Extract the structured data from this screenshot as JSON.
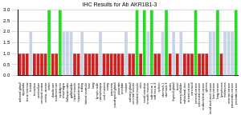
{
  "chart_data": {
    "type": "bar",
    "title": "IHC Results for Ab AKR1B1-3",
    "categories": [
      "adrenal gland",
      "appendix",
      "bone marrow",
      "breast",
      "bronchus",
      "cerebellum",
      "cerebral cortex",
      "cervix, uterine",
      "colon",
      "duodenum",
      "endometrium",
      "epididymis",
      "esophagus",
      "fallopian tube",
      "gallbladder",
      "heart muscle",
      "hippocampus",
      "kidney",
      "lateral ventricle",
      "liver",
      "lung",
      "lymph node",
      "nasopharynx",
      "oral mucosa",
      "ovary",
      "pancreas",
      "parathyroid gland",
      "placenta",
      "prostate",
      "rectum",
      "salivary gland",
      "seminal vesicle",
      "skeletal muscle",
      "skin",
      "small intestine",
      "smooth muscle",
      "soft tissue 1",
      "soft tissue 2",
      "spleen",
      "stomach 1",
      "stomach 2",
      "testis",
      "thyroid gland",
      "tonsil",
      "urinary bladder",
      "vulva/anal skin",
      "breast cancer",
      "carcinoid",
      "cervical cancer",
      "colorectal cancer",
      "endometrial cancer",
      "glioma",
      "head and neck cancer",
      "liver cancer",
      "lung cancer",
      "lymphoma",
      "melanoma",
      "ovarian cancer",
      "pancreatic cancer",
      "prostate cancer"
    ],
    "values": [
      1,
      1,
      1,
      2,
      1,
      1,
      1,
      1,
      3,
      1,
      1,
      3,
      2,
      2,
      2,
      1,
      1,
      2,
      1,
      1,
      1,
      1,
      2,
      1,
      1,
      1,
      1,
      1,
      1,
      2,
      1,
      1,
      3,
      1,
      3,
      2,
      3,
      1,
      1,
      2,
      3,
      1,
      2,
      1,
      2,
      1,
      1,
      1,
      3,
      1,
      1,
      1,
      2,
      2,
      3,
      1,
      2,
      2,
      2,
      3
    ],
    "colors": [
      "#cc2222",
      "#cc2222",
      "#cc2222",
      "#c8d4e6",
      "#cc2222",
      "#cc2222",
      "#cc2222",
      "#cc2222",
      "#22dd22",
      "#cc2222",
      "#cc2222",
      "#22dd22",
      "#c8d4e6",
      "#c8d4e6",
      "#c8d4e6",
      "#cc2222",
      "#cc2222",
      "#c8d4e6",
      "#cc2222",
      "#cc2222",
      "#cc2222",
      "#cc2222",
      "#c8d4e6",
      "#cc2222",
      "#cc2222",
      "#cc2222",
      "#cc2222",
      "#cc2222",
      "#cc2222",
      "#c8d4e6",
      "#cc2222",
      "#cc2222",
      "#22dd22",
      "#cc2222",
      "#22dd22",
      "#c8d4e6",
      "#22dd22",
      "#cc2222",
      "#cc2222",
      "#c8d4e6",
      "#22dd22",
      "#cc2222",
      "#c8d4e6",
      "#cc2222",
      "#c8d4e6",
      "#cc2222",
      "#cc2222",
      "#cc2222",
      "#22dd22",
      "#cc2222",
      "#cc2222",
      "#cc2222",
      "#c8d4e6",
      "#c8d4e6",
      "#22dd22",
      "#cc2222",
      "#c8d4e6",
      "#c8d4e6",
      "#c8d4e6",
      "#22dd22"
    ],
    "ylim": [
      0,
      3
    ],
    "yticks": [
      {
        "value": 0,
        "label": "0.0"
      },
      {
        "value": 0.5,
        "label": "0.5"
      },
      {
        "value": 1,
        "label": "1.0"
      },
      {
        "value": 1.5,
        "label": "1.5"
      },
      {
        "value": 2,
        "label": "2.0"
      },
      {
        "value": 2.5,
        "label": "2.5"
      },
      {
        "value": 3,
        "label": "3.0"
      }
    ],
    "grid": true
  }
}
